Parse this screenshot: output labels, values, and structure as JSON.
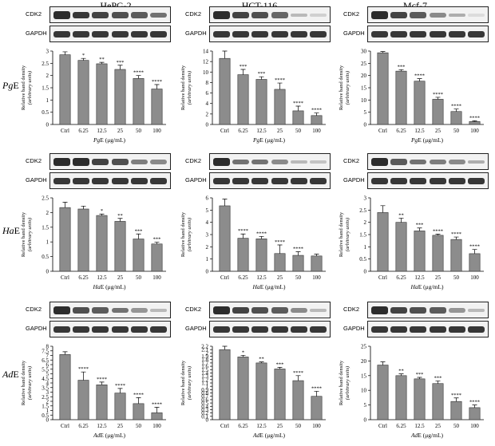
{
  "columns": [
    "HePG-2",
    "HCT-116",
    "Mcf-7"
  ],
  "rows": [
    {
      "prefix": "Pg",
      "suffix": "E"
    },
    {
      "prefix": "Ha",
      "suffix": "E"
    },
    {
      "prefix": "Ad",
      "suffix": "E"
    }
  ],
  "blot_labels": {
    "target": "CDK2",
    "control": "GAPDH"
  },
  "ylabel_lines": [
    "Relative band density",
    "(arbitrary units)"
  ],
  "colors": {
    "bar": "#8c8c8c",
    "axis": "#000000"
  },
  "chart_data": [
    {
      "type": "bar",
      "panel": "HePG-2 / PgE",
      "categories": [
        "Ctrl",
        "6.25",
        "12.5",
        "25",
        "50",
        "100"
      ],
      "values": [
        2.85,
        2.62,
        2.48,
        2.25,
        1.88,
        1.45
      ],
      "errors": [
        0.12,
        0.08,
        0.06,
        0.17,
        0.12,
        0.18
      ],
      "significance": [
        "",
        "*",
        "**",
        "***",
        "****",
        "****"
      ],
      "xlabel": "PgE (μg/mL)",
      "ylabel": "Relative band density (arbitrary units)",
      "ylim": [
        0,
        3
      ],
      "yticks": [
        0,
        0.5,
        1,
        1.5,
        2,
        2.5,
        3
      ]
    },
    {
      "type": "bar",
      "panel": "HCT-116 / PgE",
      "categories": [
        "Ctrl",
        "6.25",
        "12.5",
        "25",
        "50",
        "100"
      ],
      "values": [
        12.6,
        9.5,
        8.6,
        6.7,
        2.6,
        1.7
      ],
      "errors": [
        1.4,
        1.0,
        0.5,
        1.2,
        0.9,
        0.5
      ],
      "significance": [
        "",
        "***",
        "***",
        "****",
        "****",
        "****"
      ],
      "xlabel": "PgE (μg/mL)",
      "ylabel": "Relative band density (arbitrary units)",
      "ylim": [
        0,
        14
      ],
      "yticks": [
        0,
        2,
        4,
        6,
        8,
        10,
        12,
        14
      ]
    },
    {
      "type": "bar",
      "panel": "Mcf-7 / PgE",
      "categories": [
        "Ctrl",
        "6.25",
        "12.5",
        "25",
        "50",
        "100"
      ],
      "values": [
        29.3,
        21.8,
        17.7,
        10.3,
        5.3,
        1.2
      ],
      "errors": [
        0.5,
        0.6,
        1.0,
        0.8,
        1.0,
        0.3
      ],
      "significance": [
        "",
        "***",
        "****",
        "****",
        "****",
        "****"
      ],
      "xlabel": "PgE (μg/mL)",
      "ylabel": "Relative band density (arbitrary units)",
      "ylim": [
        0,
        30
      ],
      "yticks": [
        0,
        5,
        10,
        15,
        20,
        25,
        30
      ]
    },
    {
      "type": "bar",
      "panel": "HePG-2 / HaE",
      "categories": [
        "Ctrl",
        "6.25",
        "12.5",
        "25",
        "50",
        "100"
      ],
      "values": [
        2.17,
        2.12,
        1.9,
        1.7,
        1.1,
        0.93
      ],
      "errors": [
        0.18,
        0.1,
        0.05,
        0.1,
        0.17,
        0.06
      ],
      "significance": [
        "",
        "",
        "*",
        "**",
        "***",
        "***"
      ],
      "xlabel": "HaE (μg/mL)",
      "ylabel": "Relative band density (arbitrary units)",
      "ylim": [
        0,
        2.5
      ],
      "yticks": [
        0,
        0.5,
        1,
        1.5,
        2,
        2.5
      ]
    },
    {
      "type": "bar",
      "panel": "HCT-116 / HaE",
      "categories": [
        "Ctrl",
        "6.25",
        "12.5",
        "25",
        "50",
        "100"
      ],
      "values": [
        5.35,
        2.7,
        2.65,
        1.45,
        1.3,
        1.25
      ],
      "errors": [
        0.55,
        0.35,
        0.2,
        0.7,
        0.3,
        0.15
      ],
      "significance": [
        "",
        "****",
        "****",
        "****",
        "****",
        ""
      ],
      "xlabel": "HaE (μg/mL)",
      "ylabel": "Relative band density (arbitrary units)",
      "ylim": [
        0,
        6
      ],
      "yticks": [
        0,
        1,
        2,
        3,
        4,
        5,
        6
      ]
    },
    {
      "type": "bar",
      "panel": "Mcf-7 / HaE",
      "categories": [
        "Ctrl",
        "6.25",
        "12.5",
        "25",
        "50",
        "100"
      ],
      "values": [
        2.4,
        2.0,
        1.65,
        1.47,
        1.3,
        0.72
      ],
      "errors": [
        0.28,
        0.17,
        0.12,
        0.05,
        0.1,
        0.17
      ],
      "significance": [
        "",
        "**",
        "***",
        "****",
        "****",
        "****"
      ],
      "xlabel": "HaE (μg/mL)",
      "ylabel": "Relative band density (arbitrary units)",
      "ylim": [
        0,
        3
      ],
      "yticks": [
        0,
        0.5,
        1,
        1.5,
        2,
        2.5,
        3
      ]
    },
    {
      "type": "bar",
      "panel": "HePG-2 / AdE",
      "categories": [
        "Ctrl",
        "6.25",
        "12.5",
        "25",
        "50",
        "100"
      ],
      "values": [
        7.1,
        4.3,
        3.8,
        2.9,
        1.75,
        0.75
      ],
      "errors": [
        0.3,
        0.9,
        0.3,
        0.5,
        0.65,
        0.6
      ],
      "significance": [
        "",
        "****",
        "****",
        "****",
        "****",
        "****"
      ],
      "xlabel": "AdE (μg/mL)",
      "ylabel": "Relative band density (arbitrary units)",
      "ylim": [
        0,
        8
      ],
      "yticks": [
        0,
        0.5,
        1,
        1.5,
        2,
        2.5,
        3,
        3.5,
        4,
        4.5,
        5,
        5.5,
        6,
        6.5,
        7,
        7.5,
        8
      ]
    },
    {
      "type": "bar",
      "panel": "HCT-116 / AdE",
      "categories": [
        "Ctrl",
        "6.25",
        "12.5",
        "25",
        "50",
        "100"
      ],
      "values": [
        2.1,
        1.88,
        1.7,
        1.52,
        1.17,
        0.7
      ],
      "errors": [
        0.1,
        0.05,
        0.03,
        0.05,
        0.15,
        0.15
      ],
      "significance": [
        "",
        "*",
        "**",
        "***",
        "****",
        "****"
      ],
      "xlabel": "AdE (μg/mL)",
      "ylabel": "Relative band density (arbitrary units)",
      "ylim": [
        0,
        2.2
      ],
      "yticks": [
        0,
        0.1,
        0.2,
        0.3,
        0.4,
        0.5,
        0.6,
        0.7,
        0.8,
        0.9,
        1,
        1.1,
        1.2,
        1.3,
        1.4,
        1.5,
        1.6,
        1.7,
        1.8,
        1.9,
        2,
        2.1,
        2.2
      ]
    },
    {
      "type": "bar",
      "panel": "Mcf-7 / AdE",
      "categories": [
        "Ctrl",
        "6.25",
        "12.5",
        "25",
        "50",
        "100"
      ],
      "values": [
        18.6,
        15.0,
        13.9,
        12.3,
        6.2,
        4.1
      ],
      "errors": [
        1.1,
        0.6,
        0.5,
        0.9,
        1.2,
        0.9
      ],
      "significance": [
        "",
        "**",
        "***",
        "***",
        "****",
        "****"
      ],
      "xlabel": "AdE (μg/mL)",
      "ylabel": "Relative band density (arbitrary units)",
      "ylim": [
        0,
        25
      ],
      "yticks": [
        0,
        5,
        10,
        15,
        20,
        25
      ]
    }
  ],
  "blot_intensities": [
    [
      [
        0.9,
        0.85,
        0.8,
        0.75,
        0.7,
        0.6
      ],
      [
        0.85,
        0.85,
        0.85,
        0.85,
        0.85,
        0.85
      ]
    ],
    [
      [
        0.9,
        0.8,
        0.75,
        0.65,
        0.3,
        0.2
      ],
      [
        0.85,
        0.85,
        0.85,
        0.85,
        0.85,
        0.85
      ]
    ],
    [
      [
        0.9,
        0.8,
        0.7,
        0.5,
        0.35,
        0.15
      ],
      [
        0.85,
        0.85,
        0.85,
        0.85,
        0.85,
        0.85
      ]
    ],
    [
      [
        0.9,
        0.9,
        0.8,
        0.75,
        0.55,
        0.5
      ],
      [
        0.85,
        0.85,
        0.85,
        0.85,
        0.85,
        0.85
      ]
    ],
    [
      [
        0.9,
        0.6,
        0.6,
        0.5,
        0.3,
        0.25
      ],
      [
        0.85,
        0.85,
        0.85,
        0.85,
        0.85,
        0.85
      ]
    ],
    [
      [
        0.9,
        0.7,
        0.6,
        0.55,
        0.5,
        0.35
      ],
      [
        0.85,
        0.85,
        0.85,
        0.85,
        0.85,
        0.85
      ]
    ],
    [
      [
        0.9,
        0.75,
        0.7,
        0.6,
        0.45,
        0.3
      ],
      [
        0.85,
        0.85,
        0.85,
        0.85,
        0.85,
        0.85
      ]
    ],
    [
      [
        0.9,
        0.8,
        0.75,
        0.7,
        0.5,
        0.3
      ],
      [
        0.85,
        0.85,
        0.85,
        0.85,
        0.85,
        0.85
      ]
    ],
    [
      [
        0.9,
        0.8,
        0.75,
        0.7,
        0.45,
        0.3
      ],
      [
        0.85,
        0.85,
        0.85,
        0.85,
        0.85,
        0.85
      ]
    ]
  ]
}
